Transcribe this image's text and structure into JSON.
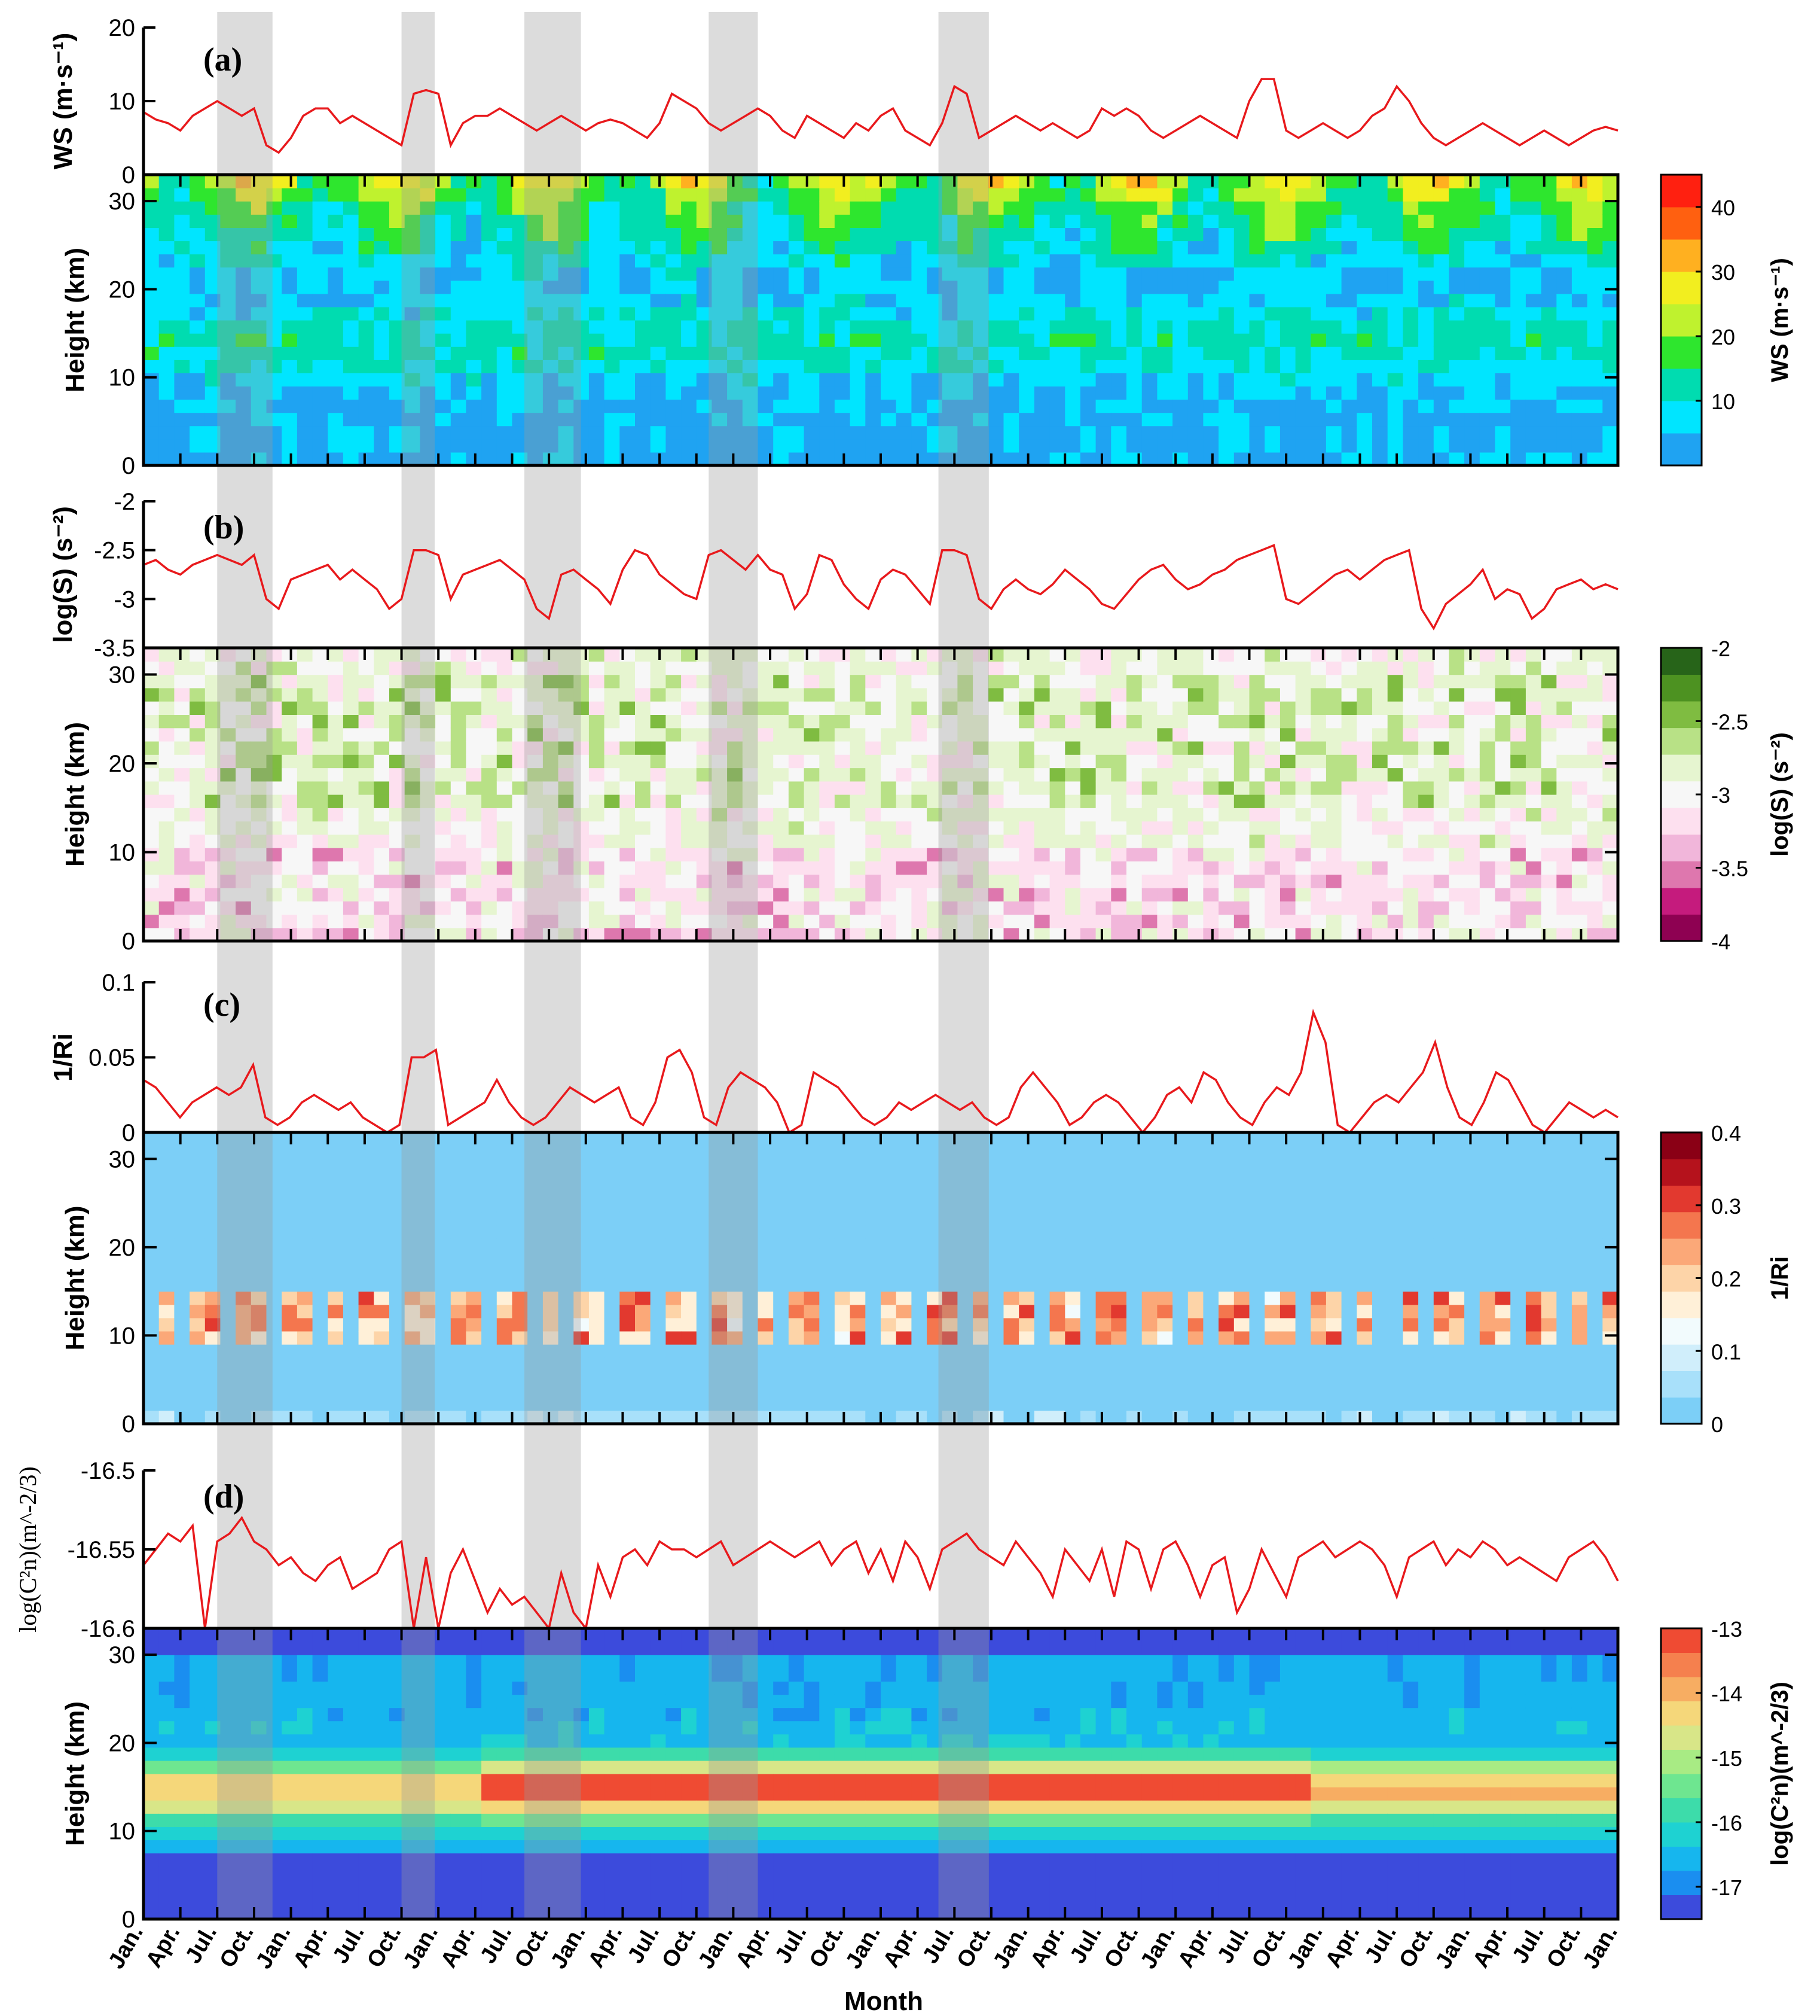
{
  "chart_data": {
    "type": "multi-panel time-height figure",
    "x_axis": {
      "label": "Month",
      "tick_labels": [
        "Jan.",
        "Apr.",
        "Jul.",
        "Oct.",
        "Jan.",
        "Apr.",
        "Jul.",
        "Oct.",
        "Jan.",
        "Apr.",
        "Jul.",
        "Oct.",
        "Jan.",
        "Apr.",
        "Jul.",
        "Oct.",
        "Jan.",
        "Apr.",
        "Jul.",
        "Oct.",
        "Jan.",
        "Apr.",
        "Jul.",
        "Oct.",
        "Jan.",
        "Apr.",
        "Jul.",
        "Oct.",
        "Jan.",
        "Apr.",
        "Jul.",
        "Oct.",
        "Jan.",
        "Apr.",
        "Jul.",
        "Oct.",
        "Jan.",
        "Apr.",
        "Jul.",
        "Oct.",
        "Jan."
      ],
      "range_months": [
        0,
        120
      ]
    },
    "highlight_bands_months": [
      [
        6,
        10.5
      ],
      [
        21,
        23.7
      ],
      [
        31,
        35.6
      ],
      [
        46,
        50
      ],
      [
        64.7,
        68.8
      ]
    ],
    "panels": [
      {
        "id": "a",
        "tag": "(a)",
        "line": {
          "ylabel": "WS",
          "yunit": "(m·s⁻¹)",
          "yticks": [
            "0",
            "10",
            "20"
          ],
          "ylim": [
            0,
            20
          ],
          "series": {
            "name": "WS",
            "values": [
              8.5,
              7.5,
              7,
              6,
              8,
              9,
              10,
              9,
              8,
              9,
              4,
              3,
              5,
              8,
              9,
              9,
              7,
              8,
              7,
              6,
              5,
              4,
              11,
              11.5,
              11,
              4,
              7,
              8,
              8,
              9,
              8,
              7,
              6,
              7,
              8,
              7,
              6,
              7,
              7.5,
              7,
              6,
              5,
              7,
              11,
              10,
              9,
              7,
              6,
              7,
              8,
              9,
              8,
              6,
              5,
              8,
              7,
              6,
              5,
              7,
              6,
              8,
              9,
              6,
              5,
              4,
              7,
              12,
              11,
              5,
              6,
              7,
              8,
              7,
              6,
              7,
              6,
              5,
              6,
              9,
              8,
              9,
              8,
              6,
              5,
              6,
              7,
              8,
              7,
              6,
              5,
              10,
              13,
              13,
              6,
              5,
              6,
              7,
              6,
              5,
              6,
              8,
              9,
              12,
              10,
              7,
              5,
              4,
              5,
              6,
              7,
              6,
              5,
              4,
              5,
              6,
              5,
              4,
              5,
              6,
              6.5,
              6
            ]
          }
        },
        "contour": {
          "ylabel": "Height (km)",
          "yticks": [
            "0",
            "10",
            "20",
            "30"
          ],
          "ylim": [
            0,
            33
          ],
          "colorbar": {
            "label": "WS",
            "unit": "(m·s⁻¹)",
            "ticks": [
              "10",
              "20",
              "30",
              "40"
            ],
            "range": [
              0,
              45
            ],
            "colors": [
              "#1fa3f2",
              "#00e5ff",
              "#00dcb0",
              "#2ee62e",
              "#bff22e",
              "#f2ee1f",
              "#ffb020",
              "#ff6010",
              "#ff2010"
            ]
          }
        }
      },
      {
        "id": "b",
        "tag": "(b)",
        "line": {
          "ylabel": "log(S) (s⁻²)",
          "yticks": [
            "-3.5",
            "-3",
            "-2.5",
            "-2"
          ],
          "ylim": [
            -3.5,
            -2
          ],
          "series": {
            "name": "log(S)",
            "values": [
              -2.65,
              -2.6,
              -2.7,
              -2.75,
              -2.65,
              -2.6,
              -2.55,
              -2.6,
              -2.65,
              -2.55,
              -3.0,
              -3.1,
              -2.8,
              -2.75,
              -2.7,
              -2.65,
              -2.8,
              -2.7,
              -2.8,
              -2.9,
              -3.1,
              -3.0,
              -2.5,
              -2.5,
              -2.55,
              -3.0,
              -2.75,
              -2.7,
              -2.65,
              -2.6,
              -2.7,
              -2.8,
              -3.1,
              -3.2,
              -2.75,
              -2.7,
              -2.8,
              -2.9,
              -3.05,
              -2.7,
              -2.5,
              -2.55,
              -2.75,
              -2.85,
              -2.95,
              -3.0,
              -2.55,
              -2.5,
              -2.6,
              -2.7,
              -2.55,
              -2.7,
              -2.75,
              -3.1,
              -2.95,
              -2.55,
              -2.6,
              -2.85,
              -3.0,
              -3.1,
              -2.8,
              -2.7,
              -2.75,
              -2.9,
              -3.05,
              -2.5,
              -2.5,
              -2.55,
              -3.0,
              -3.1,
              -2.9,
              -2.8,
              -2.9,
              -2.95,
              -2.85,
              -2.7,
              -2.8,
              -2.9,
              -3.05,
              -3.1,
              -2.95,
              -2.8,
              -2.7,
              -2.65,
              -2.8,
              -2.9,
              -2.85,
              -2.75,
              -2.7,
              -2.6,
              -2.55,
              -2.5,
              -2.45,
              -3.0,
              -3.05,
              -2.95,
              -2.85,
              -2.75,
              -2.7,
              -2.8,
              -2.7,
              -2.6,
              -2.55,
              -2.5,
              -3.1,
              -3.3,
              -3.05,
              -2.95,
              -2.85,
              -2.7,
              -3.0,
              -2.9,
              -2.95,
              -3.2,
              -3.1,
              -2.9,
              -2.85,
              -2.8,
              -2.9,
              -2.85,
              -2.9
            ]
          }
        },
        "contour": {
          "ylabel": "Height (km)",
          "yticks": [
            "0",
            "10",
            "20",
            "30"
          ],
          "ylim": [
            0,
            33
          ],
          "colorbar": {
            "label": "log(S) (s⁻²)",
            "ticks": [
              "-4",
              "-3.5",
              "-3",
              "-2.5",
              "-2"
            ],
            "range": [
              -4,
              -2
            ],
            "colors": [
              "#8e0152",
              "#c51b7d",
              "#de77ae",
              "#f1b6da",
              "#fde0ef",
              "#f7f7f7",
              "#e6f5d0",
              "#b8e186",
              "#7fbc41",
              "#4d9221",
              "#276419"
            ]
          }
        }
      },
      {
        "id": "c",
        "tag": "(c)",
        "line": {
          "ylabel": "1/Ri",
          "yticks": [
            "0",
            "0.05",
            "0.1"
          ],
          "ylim": [
            0,
            0.1
          ],
          "series": {
            "name": "1/Ri",
            "values": [
              0.035,
              0.03,
              0.02,
              0.01,
              0.02,
              0.025,
              0.03,
              0.025,
              0.03,
              0.045,
              0.01,
              0.005,
              0.01,
              0.02,
              0.025,
              0.02,
              0.015,
              0.02,
              0.01,
              0.005,
              0.0,
              0.005,
              0.05,
              0.05,
              0.055,
              0.005,
              0.01,
              0.015,
              0.02,
              0.035,
              0.02,
              0.01,
              0.005,
              0.01,
              0.02,
              0.03,
              0.025,
              0.02,
              0.025,
              0.03,
              0.01,
              0.005,
              0.02,
              0.05,
              0.055,
              0.04,
              0.01,
              0.005,
              0.03,
              0.04,
              0.035,
              0.03,
              0.02,
              0.0,
              0.005,
              0.04,
              0.035,
              0.03,
              0.02,
              0.01,
              0.005,
              0.01,
              0.02,
              0.015,
              0.02,
              0.025,
              0.02,
              0.015,
              0.02,
              0.01,
              0.005,
              0.01,
              0.03,
              0.04,
              0.03,
              0.02,
              0.005,
              0.01,
              0.02,
              0.025,
              0.02,
              0.01,
              0.0,
              0.01,
              0.025,
              0.03,
              0.02,
              0.04,
              0.035,
              0.02,
              0.01,
              0.005,
              0.02,
              0.03,
              0.025,
              0.04,
              0.08,
              0.06,
              0.005,
              0.0,
              0.01,
              0.02,
              0.025,
              0.02,
              0.03,
              0.04,
              0.06,
              0.03,
              0.01,
              0.005,
              0.02,
              0.04,
              0.035,
              0.02,
              0.005,
              0.0,
              0.01,
              0.02,
              0.015,
              0.01,
              0.015,
              0.01
            ]
          }
        },
        "contour": {
          "ylabel": "Height (km)",
          "yticks": [
            "0",
            "10",
            "20",
            "30"
          ],
          "ylim": [
            0,
            33
          ],
          "colorbar": {
            "label": "1/Ri",
            "ticks": [
              "0",
              "0.1",
              "0.2",
              "0.3",
              "0.4"
            ],
            "range": [
              0,
              0.4
            ],
            "colors": [
              "#7ccff7",
              "#a8e0fa",
              "#d0eefb",
              "#f2fbfd",
              "#fff0d8",
              "#fdd4a8",
              "#fba878",
              "#f4764e",
              "#e2392f",
              "#b5121c",
              "#8a0015"
            ]
          }
        }
      },
      {
        "id": "d",
        "tag": "(d)",
        "line": {
          "ylabel": "log(C²n)(m^-2/3)",
          "yticks": [
            "-16.6",
            "-16.55",
            "-16.5"
          ],
          "ylim": [
            -16.6,
            -16.5
          ],
          "series": {
            "name": "log(Cn2)",
            "values": [
              -16.56,
              -16.55,
              -16.54,
              -16.545,
              -16.535,
              -16.6,
              -16.545,
              -16.54,
              -16.53,
              -16.545,
              -16.55,
              -16.56,
              -16.555,
              -16.565,
              -16.57,
              -16.56,
              -16.555,
              -16.575,
              -16.57,
              -16.565,
              -16.55,
              -16.545,
              -16.6,
              -16.555,
              -16.6,
              -16.565,
              -16.55,
              -16.57,
              -16.59,
              -16.575,
              -16.585,
              -16.58,
              -16.59,
              -16.6,
              -16.565,
              -16.59,
              -16.6,
              -16.56,
              -16.58,
              -16.555,
              -16.55,
              -16.56,
              -16.545,
              -16.55,
              -16.55,
              -16.555,
              -16.55,
              -16.545,
              -16.56,
              -16.555,
              -16.55,
              -16.545,
              -16.55,
              -16.555,
              -16.55,
              -16.545,
              -16.56,
              -16.55,
              -16.545,
              -16.565,
              -16.55,
              -16.57,
              -16.545,
              -16.555,
              -16.575,
              -16.55,
              -16.545,
              -16.54,
              -16.55,
              -16.555,
              -16.56,
              -16.545,
              -16.555,
              -16.565,
              -16.58,
              -16.55,
              -16.56,
              -16.57,
              -16.55,
              -16.58,
              -16.545,
              -16.55,
              -16.575,
              -16.55,
              -16.545,
              -16.56,
              -16.58,
              -16.56,
              -16.555,
              -16.59,
              -16.575,
              -16.55,
              -16.565,
              -16.58,
              -16.555,
              -16.55,
              -16.545,
              -16.555,
              -16.55,
              -16.545,
              -16.55,
              -16.56,
              -16.58,
              -16.555,
              -16.55,
              -16.545,
              -16.56,
              -16.55,
              -16.555,
              -16.545,
              -16.55,
              -16.56,
              -16.555,
              -16.56,
              -16.565,
              -16.57,
              -16.555,
              -16.55,
              -16.545,
              -16.555,
              -16.57
            ]
          }
        },
        "contour": {
          "ylabel": "Height (km)",
          "yticks": [
            "0",
            "10",
            "20",
            "30"
          ],
          "ylim": [
            0,
            33
          ],
          "colorbar": {
            "label": "log(C²n)(m^-2/3)",
            "ticks": [
              "-17",
              "-16",
              "-15",
              "-14",
              "-13"
            ],
            "range": [
              -17.5,
              -13
            ],
            "colors": [
              "#3c4bdc",
              "#1a8ef0",
              "#16b6ee",
              "#1ed2d2",
              "#3ddcaa",
              "#6ee690",
              "#a8eb84",
              "#d8e688",
              "#f5d77a",
              "#f7ad62",
              "#f5804e",
              "#ef4b33"
            ]
          }
        }
      }
    ]
  }
}
